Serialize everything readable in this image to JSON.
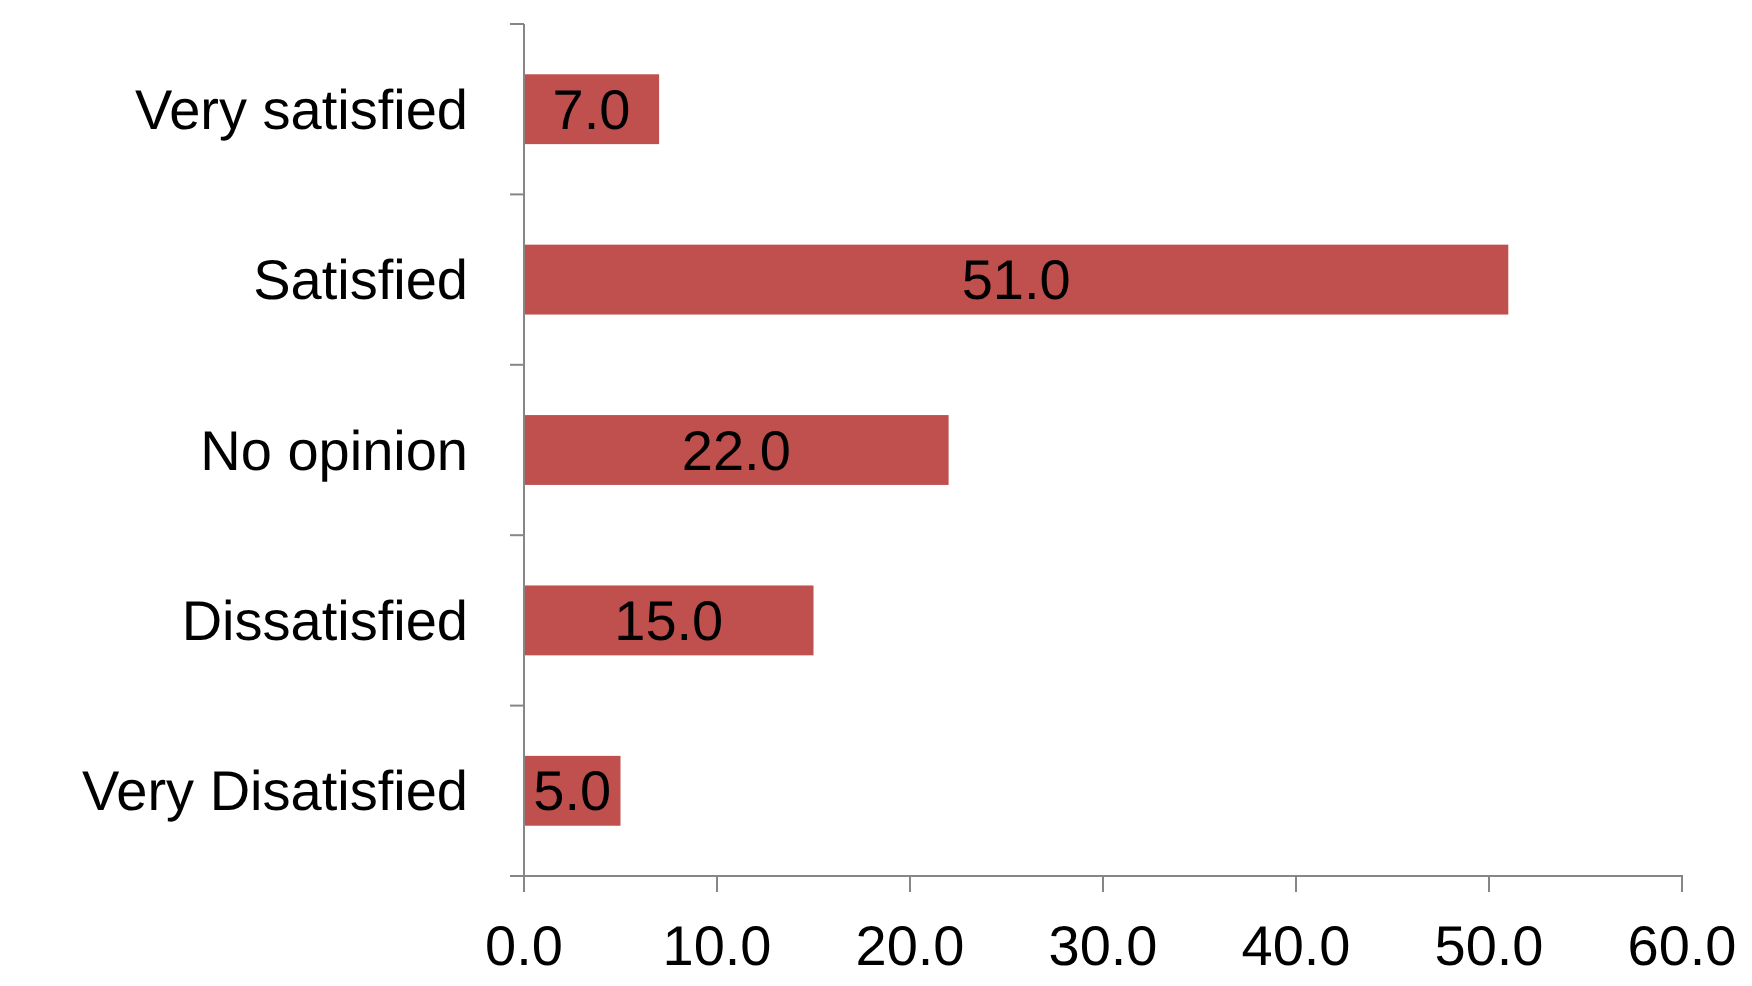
{
  "chart_data": {
    "type": "bar",
    "orientation": "horizontal",
    "categories": [
      "Very satisfied",
      "Satisfied",
      "No opinion",
      "Dissatisfied",
      "Very Disatisfied"
    ],
    "values": [
      7.0,
      51.0,
      22.0,
      15.0,
      5.0
    ],
    "color": "#c0504d",
    "xlim": [
      0,
      60
    ],
    "xticks": [
      {
        "value": 0,
        "label": "0.0"
      },
      {
        "value": 10,
        "label": "10.0"
      },
      {
        "value": 20,
        "label": "20.0"
      },
      {
        "value": 30,
        "label": "30.0"
      },
      {
        "value": 40,
        "label": "40.0"
      },
      {
        "value": 50,
        "label": "50.0"
      },
      {
        "value": 60,
        "label": "60.0"
      }
    ],
    "value_labels": [
      "7.0",
      "51.0",
      "22.0",
      "15.0",
      "5.0"
    ],
    "grid": false
  }
}
